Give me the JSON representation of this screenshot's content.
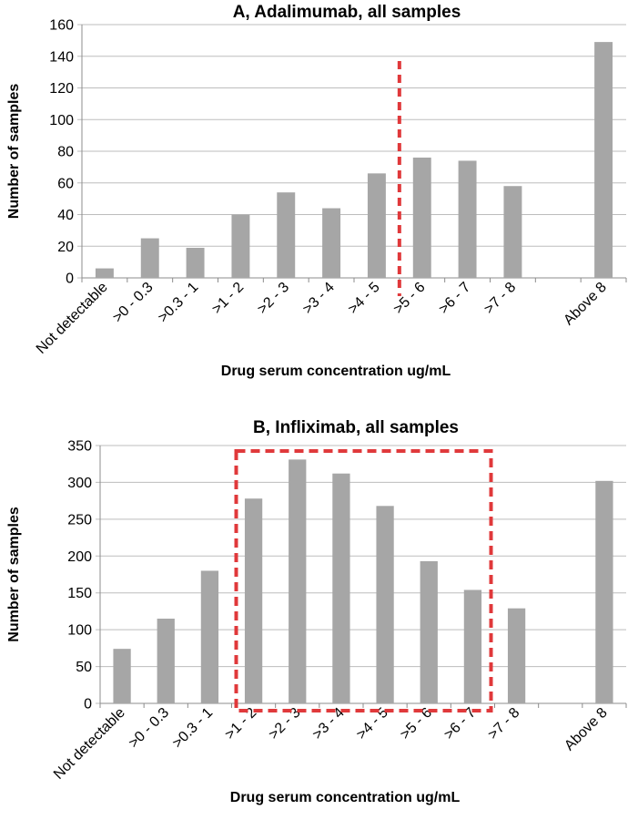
{
  "chart_data": [
    {
      "type": "bar",
      "title": "A, Adalimumab, all samples",
      "xlabel": "Drug serum concentration ug/mL",
      "ylabel": "Number of samples",
      "categories": [
        "Not detectable",
        ">0 - 0.3",
        ">0.3 - 1",
        ">1 - 2",
        ">2 - 3",
        ">3 - 4",
        ">4 - 5",
        ">5 - 6",
        ">6 - 7",
        ">7 - 8",
        "",
        "Above 8"
      ],
      "values": [
        6,
        25,
        19,
        40,
        54,
        44,
        66,
        76,
        74,
        58,
        null,
        149
      ],
      "ylim": [
        0,
        160
      ],
      "yticks": [
        0,
        20,
        40,
        60,
        80,
        100,
        120,
        140,
        160
      ],
      "grid": true,
      "bar_color": "#a6a6a6",
      "annotation": {
        "type": "dashed-vertical-line",
        "between_categories": [
          ">4 - 5",
          ">5 - 6"
        ],
        "color": "#e0393b"
      }
    },
    {
      "type": "bar",
      "title": "B, Infliximab, all samples",
      "xlabel": "Drug serum concentration ug/mL",
      "ylabel": "Number of samples",
      "categories": [
        "Not detectable",
        ">0 - 0.3",
        ">0.3 - 1",
        ">1 - 2",
        ">2 - 3",
        ">3 - 4",
        ">4 - 5",
        ">5 - 6",
        ">6 - 7",
        ">7 - 8",
        "",
        "Above 8"
      ],
      "values": [
        74,
        115,
        180,
        278,
        331,
        312,
        268,
        193,
        154,
        129,
        null,
        302
      ],
      "ylim": [
        0,
        350
      ],
      "yticks": [
        0,
        50,
        100,
        150,
        200,
        250,
        300,
        350
      ],
      "grid": true,
      "bar_color": "#a6a6a6",
      "annotation": {
        "type": "dashed-rectangle",
        "from_category": ">1 - 2",
        "to_category": ">6 - 7",
        "color": "#e0393b"
      }
    }
  ]
}
